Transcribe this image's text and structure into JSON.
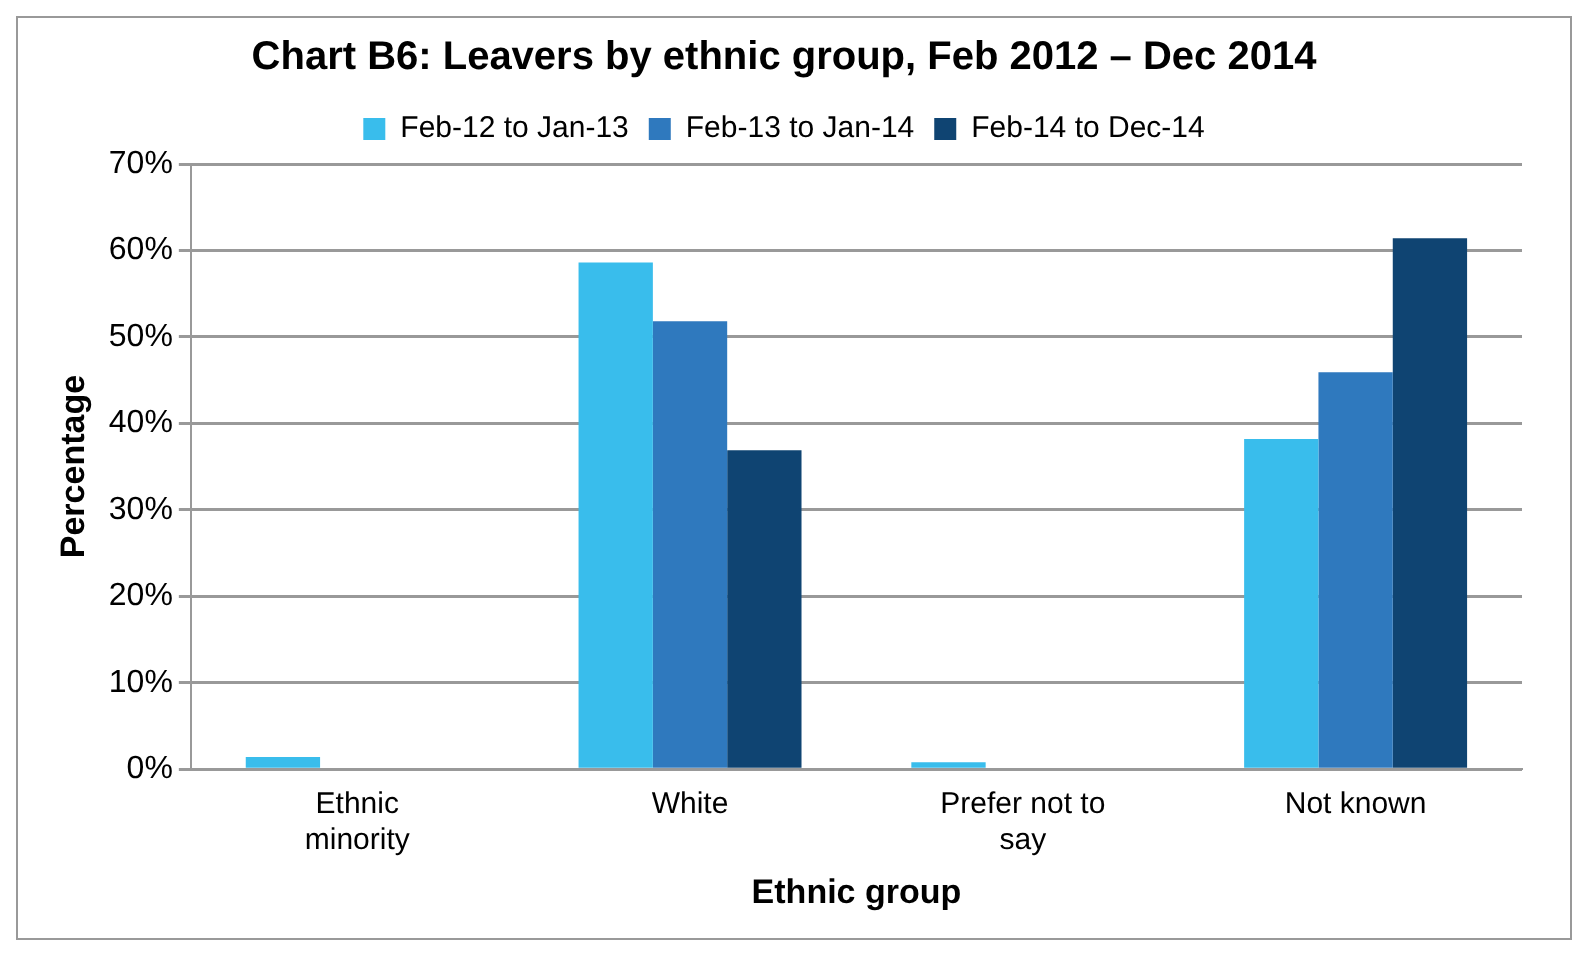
{
  "chart_data": {
    "type": "bar",
    "title": "Chart B6: Leavers by ethnic group, Feb 2012 – Dec 2014",
    "xlabel": "Ethnic group",
    "ylabel": "Percentage",
    "categories": [
      "Ethnic minority",
      "White",
      "Prefer not to say",
      "Not known"
    ],
    "series": [
      {
        "name": "Feb-12 to Jan-13",
        "color": "#39bdec",
        "values": [
          1.4,
          58.6,
          0.8,
          38.2
        ]
      },
      {
        "name": "Feb-13 to Jan-14",
        "color": "#2f79be",
        "values": [
          0,
          51.8,
          0,
          45.9
        ]
      },
      {
        "name": "Feb-14 to Dec-14",
        "color": "#0f4472",
        "values": [
          0,
          36.9,
          0,
          61.4
        ]
      }
    ],
    "ylim": [
      0,
      70
    ],
    "yticks": [
      {
        "value": 0,
        "label": "0%"
      },
      {
        "value": 10,
        "label": "10%"
      },
      {
        "value": 20,
        "label": "20%"
      },
      {
        "value": 30,
        "label": "30%"
      },
      {
        "value": 40,
        "label": "40%"
      },
      {
        "value": 50,
        "label": "50%"
      },
      {
        "value": 60,
        "label": "60%"
      },
      {
        "value": 70,
        "label": "70%"
      }
    ],
    "grid": "y",
    "legend": "top"
  }
}
